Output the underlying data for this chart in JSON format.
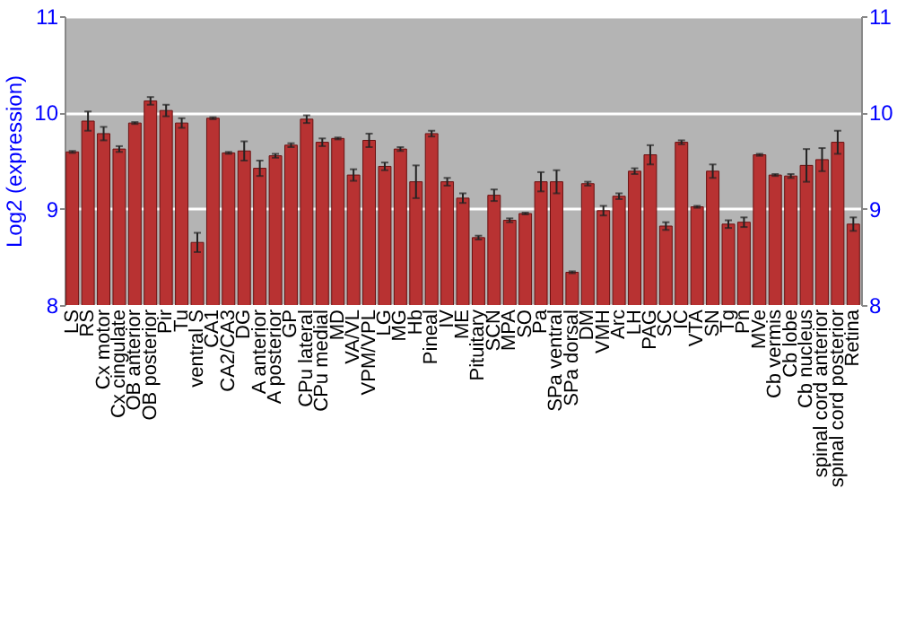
{
  "chart_data": {
    "type": "bar",
    "ylabel": "Log2 (expression)",
    "categories": [
      "LS",
      "RS",
      "Cx motor",
      "Cx cingulate",
      "OB anterior",
      "OB posterior",
      "Pir",
      "Tu",
      "ventral S",
      "CA1",
      "CA2/CA3",
      "DG",
      "A anterior",
      "A posterior",
      "GP",
      "CPu lateral",
      "CPu medial",
      "MD",
      "VA/VL",
      "VPM/VPL",
      "LG",
      "MG",
      "Hb",
      "Pineal",
      "IV",
      "ME",
      "Pituitary",
      "SCN",
      "MPA",
      "SO",
      "Pa",
      "SPa ventral",
      "SPa dorsal",
      "DM",
      "VMH",
      "Arc",
      "LH",
      "PAG",
      "SC",
      "IC",
      "VTA",
      "SN",
      "Tg",
      "Pn",
      "MVe",
      "Cb vermis",
      "Cb lobe",
      "Cb nucleus",
      "spinal cord anterior",
      "spinal cord posterior",
      "Retina"
    ],
    "values": [
      9.59,
      9.91,
      9.78,
      9.62,
      9.89,
      10.12,
      10.02,
      9.89,
      8.65,
      9.94,
      9.58,
      9.6,
      9.42,
      9.55,
      9.66,
      9.93,
      9.69,
      9.73,
      9.35,
      9.71,
      9.44,
      9.62,
      9.28,
      9.78,
      9.28,
      9.11,
      8.7,
      9.14,
      8.88,
      8.95,
      9.28,
      9.28,
      8.34,
      9.26,
      8.98,
      9.13,
      9.39,
      9.56,
      8.82,
      9.69,
      9.02,
      9.39,
      8.84,
      8.86,
      9.56,
      9.35,
      9.34,
      9.45,
      9.51,
      9.69,
      8.84
    ],
    "errors": [
      0.01,
      0.1,
      0.07,
      0.03,
      0.01,
      0.04,
      0.06,
      0.05,
      0.1,
      0.01,
      0.01,
      0.1,
      0.08,
      0.02,
      0.02,
      0.04,
      0.04,
      0.01,
      0.06,
      0.07,
      0.04,
      0.02,
      0.17,
      0.03,
      0.04,
      0.05,
      0.02,
      0.06,
      0.02,
      0.01,
      0.1,
      0.12,
      0.01,
      0.02,
      0.05,
      0.03,
      0.03,
      0.1,
      0.04,
      0.02,
      0.01,
      0.07,
      0.04,
      0.05,
      0.01,
      0.01,
      0.02,
      0.17,
      0.12,
      0.12,
      0.07
    ],
    "color": "#b83232",
    "ylim": [
      8,
      11
    ],
    "yticks": [
      8,
      9,
      10,
      11
    ],
    "y2lim": [
      8,
      11
    ],
    "y2ticks": [
      8,
      9,
      10,
      11
    ],
    "grid": "y"
  }
}
